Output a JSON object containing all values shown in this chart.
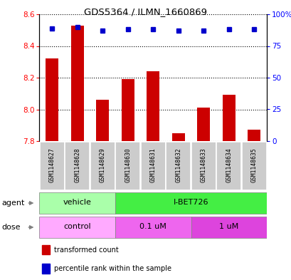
{
  "title": "GDS5364 / ILMN_1660869",
  "samples": [
    "GSM1148627",
    "GSM1148628",
    "GSM1148629",
    "GSM1148630",
    "GSM1148631",
    "GSM1148632",
    "GSM1148633",
    "GSM1148634",
    "GSM1148635"
  ],
  "bar_values": [
    8.32,
    8.53,
    8.06,
    8.19,
    8.24,
    7.85,
    8.01,
    8.09,
    7.87
  ],
  "bar_base": 7.8,
  "percentile_values": [
    89,
    90,
    87,
    88,
    88,
    87,
    87,
    88,
    88
  ],
  "bar_color": "#cc0000",
  "dot_color": "#0000cc",
  "ylim_left": [
    7.8,
    8.6
  ],
  "ylim_right": [
    0,
    100
  ],
  "yticks_left": [
    7.8,
    8.0,
    8.2,
    8.4,
    8.6
  ],
  "yticks_right": [
    0,
    25,
    50,
    75,
    100
  ],
  "ytick_labels_right": [
    "0",
    "25",
    "50",
    "75",
    "100%"
  ],
  "agent_groups": [
    {
      "label": "vehicle",
      "start": 0,
      "end": 3,
      "color": "#aaffaa"
    },
    {
      "label": "I-BET726",
      "start": 3,
      "end": 9,
      "color": "#44ee44"
    }
  ],
  "dose_groups": [
    {
      "label": "control",
      "start": 0,
      "end": 3,
      "color": "#ffaaff"
    },
    {
      "label": "0.1 uM",
      "start": 3,
      "end": 6,
      "color": "#ee66ee"
    },
    {
      "label": "1 uM",
      "start": 6,
      "end": 9,
      "color": "#dd44dd"
    }
  ],
  "legend_items": [
    {
      "label": "transformed count",
      "color": "#cc0000"
    },
    {
      "label": "percentile rank within the sample",
      "color": "#0000cc"
    }
  ],
  "background_color": "#ffffff",
  "sample_bg_color": "#cccccc",
  "agent_label": "agent",
  "dose_label": "dose"
}
